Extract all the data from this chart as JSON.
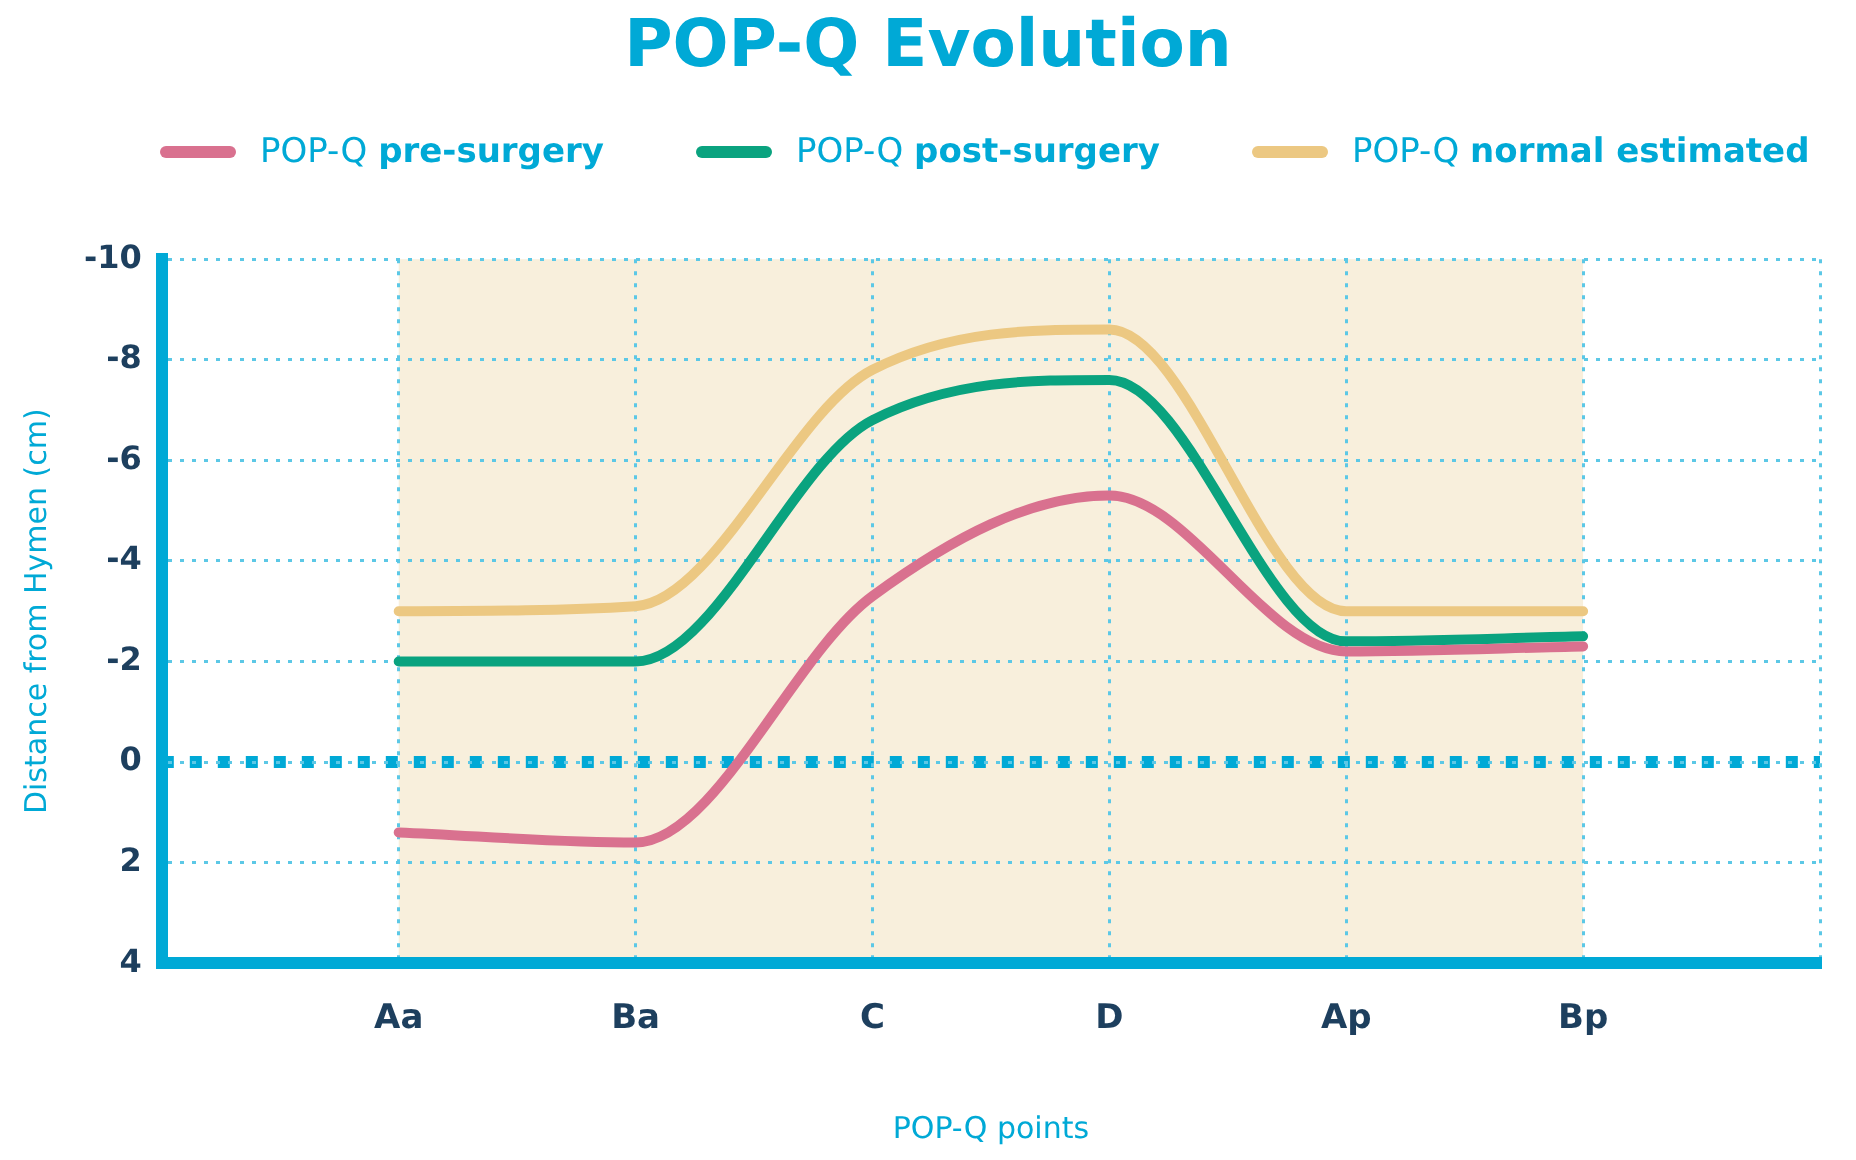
{
  "chart_data": {
    "type": "line",
    "title": "POP-Q Evolution",
    "xlabel": "POP-Q points",
    "ylabel": "Distance from Hymen (cm)",
    "categories": [
      null,
      "Aa",
      "Ba",
      "C",
      "D",
      "Ap",
      "Bp",
      null
    ],
    "series": [
      {
        "name": "POP-Q pre-surgery",
        "color": "#d9718f",
        "values": [
          null,
          1.4,
          1.6,
          -3.3,
          -5.3,
          -2.2,
          -2.3,
          null
        ]
      },
      {
        "name": "POP-Q post-surgery",
        "color": "#0aa37f",
        "values": [
          null,
          -2.0,
          -2.0,
          -6.8,
          -7.6,
          -2.4,
          -2.5,
          null
        ]
      },
      {
        "name": "POP-Q normal estimated",
        "color": "#ecc882",
        "values": [
          null,
          -3.0,
          -3.1,
          -7.8,
          -8.6,
          -3.0,
          -3.0,
          null
        ]
      }
    ],
    "ylim": [
      4,
      -10
    ],
    "yticks": [
      -10,
      -8,
      -6,
      -4,
      -2,
      0,
      2,
      4
    ],
    "bands": [
      {
        "axis": "x",
        "from": "Aa",
        "to": "Bp",
        "color": "#f6ebd3"
      }
    ],
    "ref_lines": [
      {
        "axis": "y",
        "value": 0,
        "color": "#00a9d6",
        "line_style": "dotted"
      }
    ],
    "grid": true,
    "legend": "top",
    "marker": "none"
  }
}
